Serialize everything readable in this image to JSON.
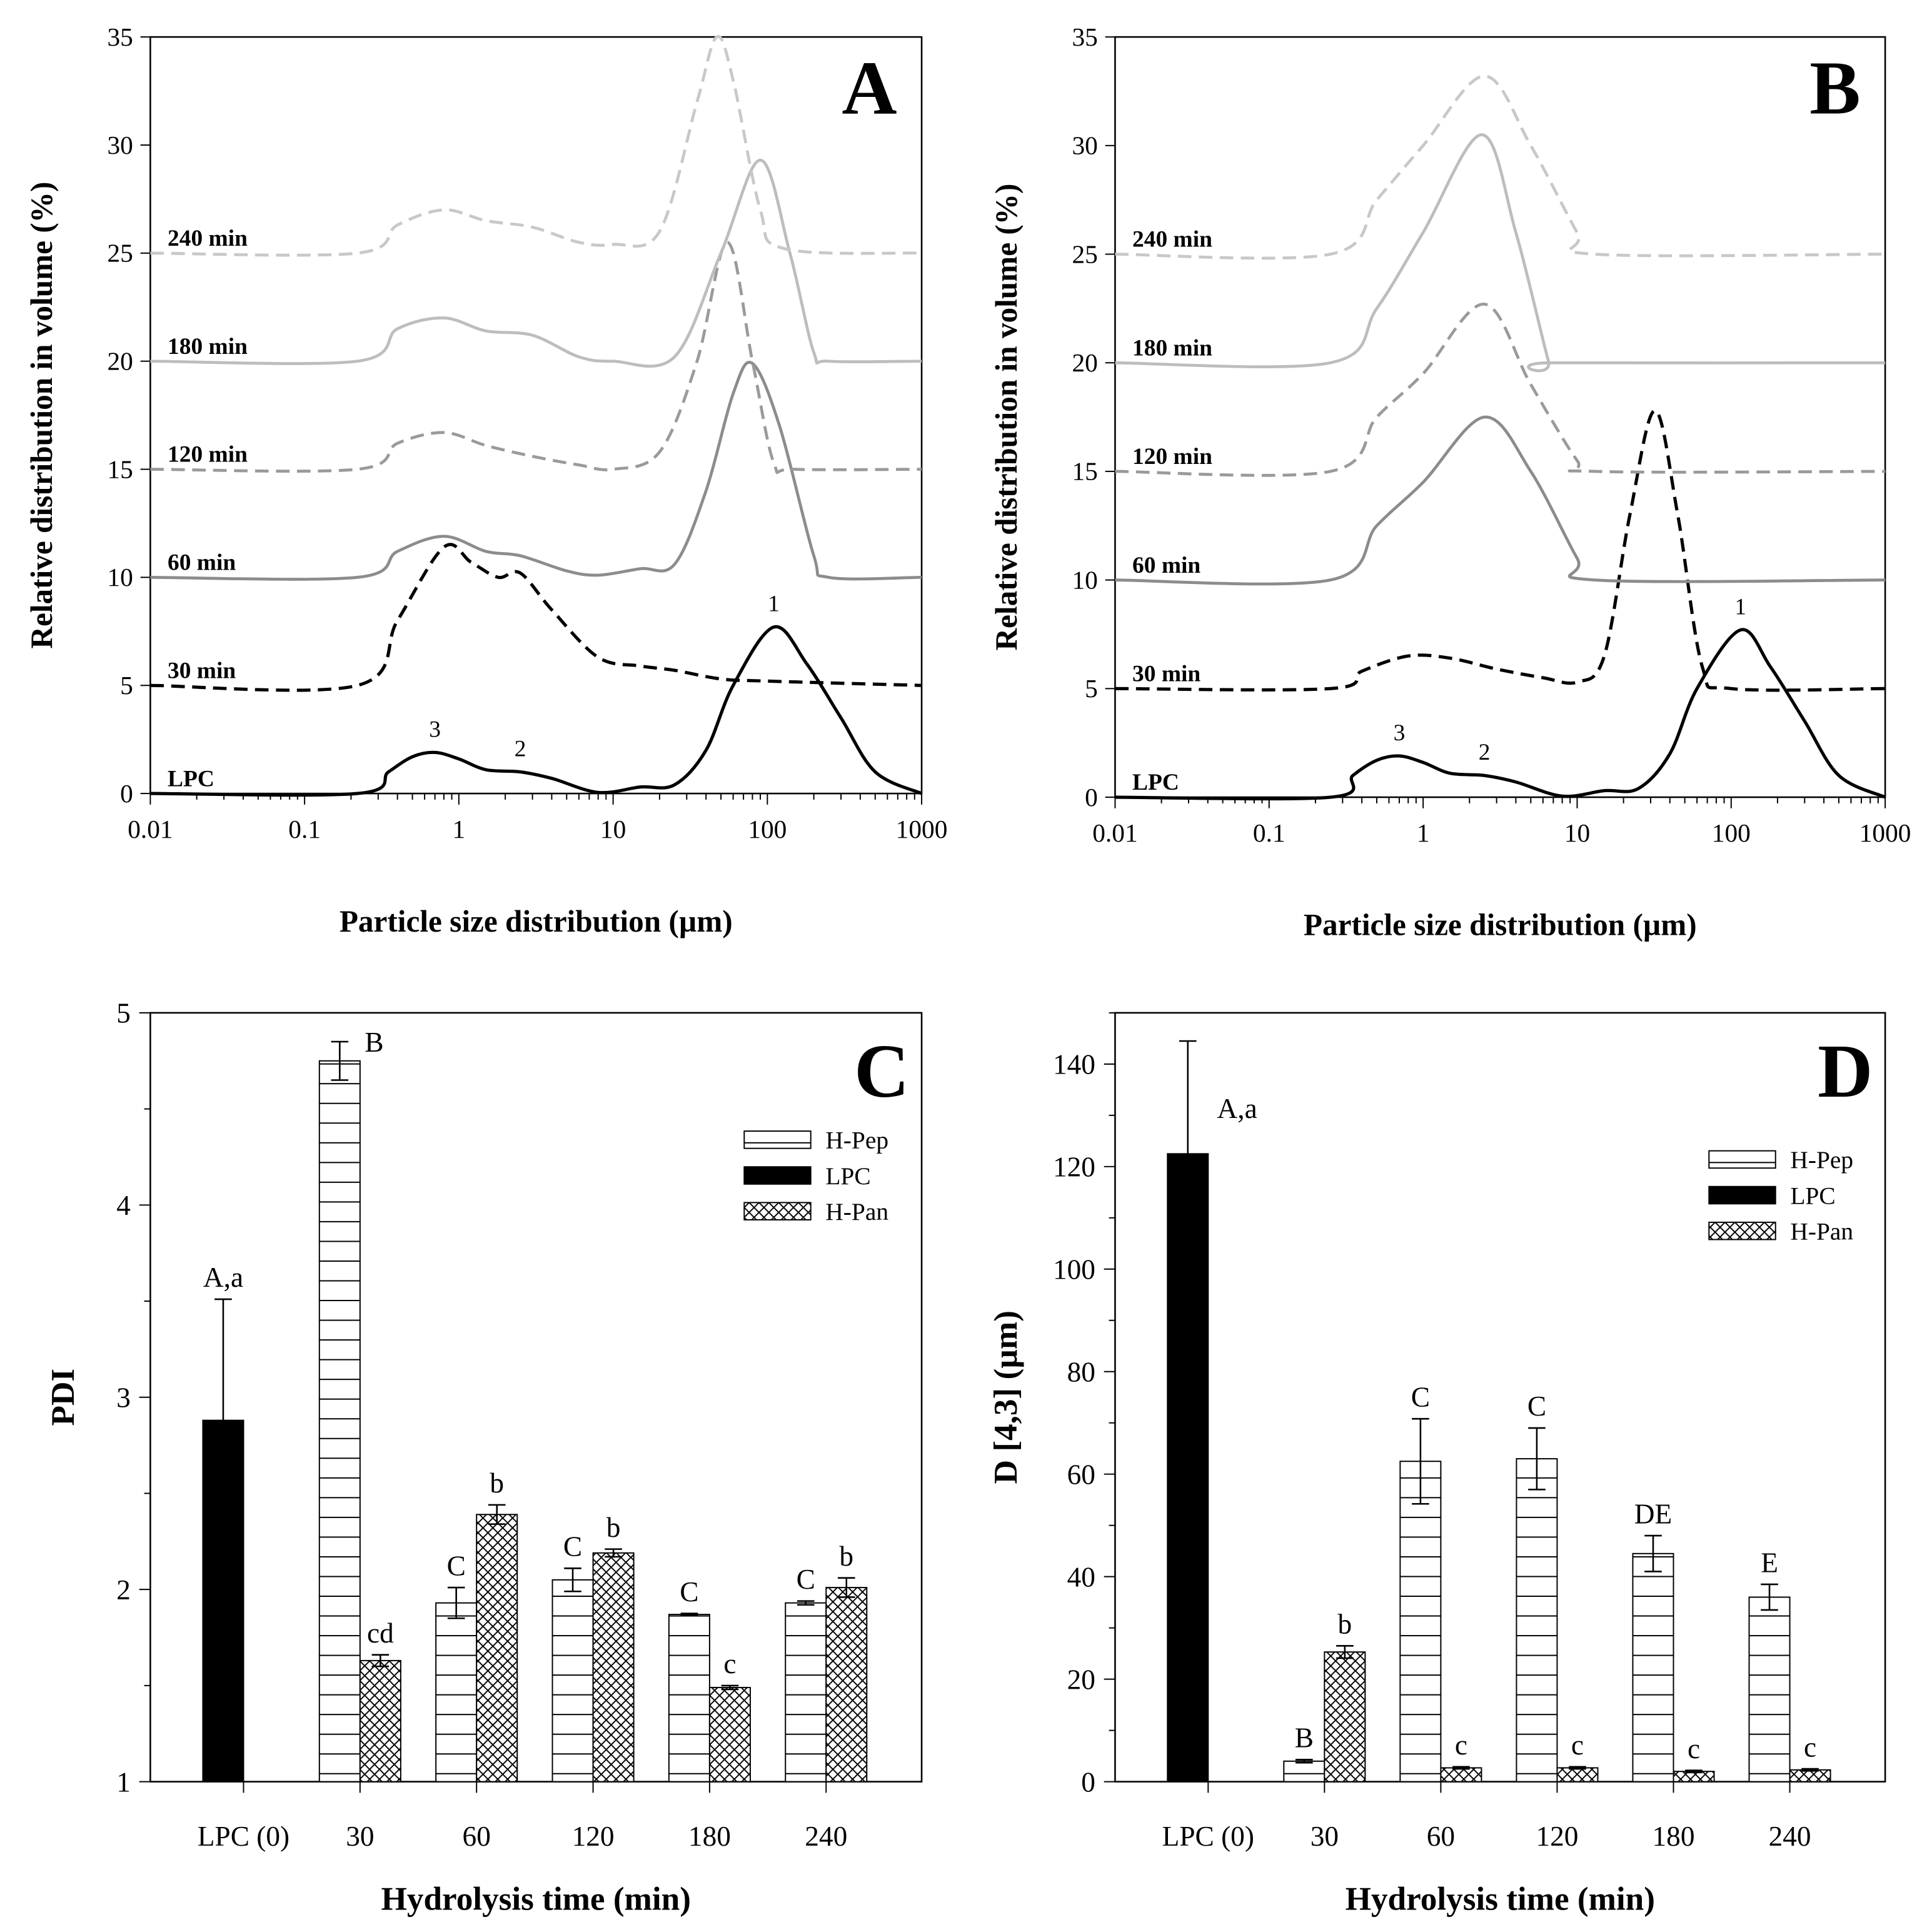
{
  "chart_data": [
    {
      "panel": "A",
      "type": "line",
      "xlabel": "Particle size distribution (µm)",
      "ylabel": "Relative distribution in volume (%)",
      "xscale": "log",
      "xlim": [
        0.01,
        1000
      ],
      "ylim": [
        0,
        35
      ],
      "xtick_labels": [
        "0.01",
        "0.1",
        "1",
        "10",
        "100",
        "1000"
      ],
      "ytick_labels": [
        "0",
        "5",
        "10",
        "15",
        "20",
        "25",
        "30",
        "35"
      ],
      "series": [
        {
          "name": "LPC",
          "label": "LPC",
          "style": "solid",
          "color": "#000000",
          "points": [
            [
              0.01,
              0
            ],
            [
              0.22,
              0
            ],
            [
              0.35,
              1
            ],
            [
              0.5,
              1.7
            ],
            [
              0.7,
              1.9
            ],
            [
              1,
              1.6
            ],
            [
              1.5,
              1.1
            ],
            [
              2.5,
              1.0
            ],
            [
              4,
              0.7
            ],
            [
              8,
              0.05
            ],
            [
              15,
              0.3
            ],
            [
              25,
              0.4
            ],
            [
              40,
              2
            ],
            [
              60,
              5
            ],
            [
              110,
              7.7
            ],
            [
              180,
              6
            ],
            [
              300,
              3.5
            ],
            [
              500,
              1
            ],
            [
              1000,
              0
            ]
          ]
        },
        {
          "name": "30 min",
          "label": "30 min",
          "style": "dashed",
          "color": "#000000",
          "points": [
            [
              0.01,
              5
            ],
            [
              0.22,
              5
            ],
            [
              0.4,
              8
            ],
            [
              0.8,
              11.4
            ],
            [
              1.2,
              10.7
            ],
            [
              1.8,
              10
            ],
            [
              2.5,
              10.2
            ],
            [
              4,
              8.5
            ],
            [
              8,
              6.3
            ],
            [
              15,
              5.9
            ],
            [
              25,
              5.7
            ],
            [
              50,
              5.3
            ],
            [
              100,
              5.2
            ],
            [
              1000,
              5
            ]
          ]
        },
        {
          "name": "60 min",
          "label": "60  min",
          "style": "solid",
          "color": "#8c8c8c",
          "points": [
            [
              0.01,
              10
            ],
            [
              0.22,
              10
            ],
            [
              0.4,
              11.2
            ],
            [
              0.8,
              11.9
            ],
            [
              1.5,
              11.2
            ],
            [
              2.5,
              11
            ],
            [
              5,
              10.3
            ],
            [
              8,
              10.1
            ],
            [
              15,
              10.4
            ],
            [
              25,
              10.6
            ],
            [
              40,
              14
            ],
            [
              60,
              18.5
            ],
            [
              80,
              19.9
            ],
            [
              120,
              17
            ],
            [
              200,
              11
            ],
            [
              250,
              10
            ],
            [
              1000,
              10
            ]
          ]
        },
        {
          "name": "120 min",
          "label": "120 min",
          "style": "dashed",
          "color": "#9a9a9a",
          "points": [
            [
              0.01,
              15
            ],
            [
              0.22,
              15
            ],
            [
              0.4,
              16.2
            ],
            [
              0.8,
              16.7
            ],
            [
              1.5,
              16.1
            ],
            [
              3,
              15.6
            ],
            [
              6,
              15.2
            ],
            [
              10,
              15
            ],
            [
              20,
              15.8
            ],
            [
              35,
              20
            ],
            [
              55,
              25.5
            ],
            [
              80,
              20
            ],
            [
              110,
              15.3
            ],
            [
              150,
              15
            ],
            [
              1000,
              15
            ]
          ]
        },
        {
          "name": "180 min",
          "label": "180 min",
          "style": "solid",
          "color": "#bdbdbd",
          "points": [
            [
              0.01,
              20
            ],
            [
              0.22,
              20
            ],
            [
              0.4,
              21.5
            ],
            [
              0.8,
              22
            ],
            [
              1.5,
              21.4
            ],
            [
              3,
              21.2
            ],
            [
              6,
              20.2
            ],
            [
              10,
              20
            ],
            [
              25,
              20.2
            ],
            [
              50,
              25
            ],
            [
              90,
              29.3
            ],
            [
              140,
              25
            ],
            [
              200,
              20.4
            ],
            [
              250,
              20
            ],
            [
              1000,
              20
            ]
          ]
        },
        {
          "name": "240 min",
          "label": "240 min",
          "style": "dashed",
          "color": "#c8c8c8",
          "points": [
            [
              0.01,
              25
            ],
            [
              0.22,
              25
            ],
            [
              0.4,
              26.3
            ],
            [
              0.8,
              27
            ],
            [
              1.5,
              26.5
            ],
            [
              3,
              26.2
            ],
            [
              6,
              25.5
            ],
            [
              10,
              25.4
            ],
            [
              20,
              26
            ],
            [
              35,
              32
            ],
            [
              47,
              35
            ],
            [
              60,
              33
            ],
            [
              90,
              27
            ],
            [
              130,
              25.2
            ],
            [
              1000,
              25
            ]
          ]
        }
      ],
      "peak_labels": [
        {
          "text": "1",
          "x": 110,
          "y": 8.2
        },
        {
          "text": "2",
          "x": 2.5,
          "y": 1.5
        },
        {
          "text": "3",
          "x": 0.7,
          "y": 2.4
        }
      ]
    },
    {
      "panel": "B",
      "type": "line",
      "xlabel": "Particle size distribution (µm)",
      "ylabel": "Relative distribution in volume (%)",
      "xscale": "log",
      "xlim": [
        0.01,
        1000
      ],
      "ylim": [
        0,
        35
      ],
      "xtick_labels": [
        "0.01",
        "0.1",
        "1",
        "10",
        "100",
        "1000"
      ],
      "ytick_labels": [
        "0",
        "5",
        "10",
        "15",
        "20",
        "25",
        "30",
        "35"
      ],
      "series": [
        {
          "name": "LPC",
          "label": "LPC",
          "style": "solid",
          "color": "#000000",
          "points": [
            [
              0.01,
              0
            ],
            [
              0.25,
              0
            ],
            [
              0.35,
              1
            ],
            [
              0.5,
              1.7
            ],
            [
              0.7,
              1.9
            ],
            [
              1,
              1.6
            ],
            [
              1.5,
              1.1
            ],
            [
              2.5,
              1.0
            ],
            [
              4,
              0.7
            ],
            [
              8,
              0.05
            ],
            [
              15,
              0.3
            ],
            [
              25,
              0.4
            ],
            [
              40,
              2
            ],
            [
              60,
              5
            ],
            [
              115,
              7.7
            ],
            [
              180,
              6
            ],
            [
              300,
              3.5
            ],
            [
              500,
              1
            ],
            [
              1000,
              0
            ]
          ]
        },
        {
          "name": "30 min",
          "label": "30 min",
          "style": "dashed",
          "color": "#000000",
          "points": [
            [
              0.01,
              5
            ],
            [
              0.25,
              5
            ],
            [
              0.4,
              5.8
            ],
            [
              0.8,
              6.5
            ],
            [
              1.5,
              6.4
            ],
            [
              3,
              5.9
            ],
            [
              6,
              5.5
            ],
            [
              10,
              5.3
            ],
            [
              15,
              6.5
            ],
            [
              22,
              13
            ],
            [
              32,
              17.8
            ],
            [
              45,
              13
            ],
            [
              65,
              6
            ],
            [
              100,
              5
            ],
            [
              1000,
              5
            ]
          ]
        },
        {
          "name": "60 min",
          "label": "60  min",
          "style": "solid",
          "color": "#8c8c8c",
          "points": [
            [
              0.01,
              10
            ],
            [
              0.25,
              10
            ],
            [
              0.5,
              12.5
            ],
            [
              1,
              14.5
            ],
            [
              2.5,
              17.5
            ],
            [
              5,
              15
            ],
            [
              10,
              11
            ],
            [
              13,
              10
            ],
            [
              1000,
              10
            ]
          ]
        },
        {
          "name": "120 min",
          "label": "120 min",
          "style": "dashed",
          "color": "#9a9a9a",
          "points": [
            [
              0.01,
              15
            ],
            [
              0.25,
              15
            ],
            [
              0.5,
              17.5
            ],
            [
              1,
              19.5
            ],
            [
              2.5,
              22.7
            ],
            [
              5,
              19
            ],
            [
              10,
              15.5
            ],
            [
              13,
              15
            ],
            [
              1000,
              15
            ]
          ]
        },
        {
          "name": "180 min",
          "label": "180 min",
          "style": "solid",
          "color": "#bdbdbd",
          "points": [
            [
              0.01,
              20
            ],
            [
              0.25,
              20
            ],
            [
              0.5,
              22.5
            ],
            [
              1,
              26
            ],
            [
              2.4,
              30.5
            ],
            [
              4,
              26
            ],
            [
              6.5,
              20.1
            ],
            [
              7,
              20
            ],
            [
              1000,
              20
            ]
          ]
        },
        {
          "name": "240 min",
          "label": "240 min",
          "style": "dashed",
          "color": "#c8c8c8",
          "points": [
            [
              0.01,
              25
            ],
            [
              0.25,
              25
            ],
            [
              0.5,
              27.5
            ],
            [
              1,
              30
            ],
            [
              2.5,
              33.2
            ],
            [
              5,
              30
            ],
            [
              10,
              26
            ],
            [
              13,
              25
            ],
            [
              1000,
              25
            ]
          ]
        }
      ],
      "peak_labels": [
        {
          "text": "1",
          "x": 115,
          "y": 8.2
        },
        {
          "text": "2",
          "x": 2.5,
          "y": 1.5
        },
        {
          "text": "3",
          "x": 0.7,
          "y": 2.4
        }
      ]
    },
    {
      "panel": "C",
      "type": "bar",
      "xlabel": "Hydrolysis time (min)",
      "ylabel": "PDI",
      "ylim": [
        1,
        5
      ],
      "ytick_labels": [
        "1",
        "2",
        "3",
        "4",
        "5"
      ],
      "categories": [
        "LPC (0)",
        "30",
        "60",
        "120",
        "180",
        "240"
      ],
      "legend": [
        "H-Pep",
        "LPC",
        "H-Pan"
      ],
      "legend_position": "top-right",
      "series": [
        {
          "name": "LPC",
          "values": [
            2.88,
            null,
            null,
            null,
            null,
            null
          ],
          "errors": [
            0.63,
            null,
            null,
            null,
            null,
            null
          ],
          "letters": [
            "A,a",
            "",
            "",
            "",
            "",
            ""
          ]
        },
        {
          "name": "H-Pep",
          "values": [
            null,
            4.75,
            1.93,
            2.05,
            1.87,
            1.93
          ],
          "errors": [
            null,
            0.1,
            0.08,
            0.06,
            0.005,
            0.01
          ],
          "letters": [
            "",
            "B",
            "C",
            "C",
            "C",
            "C"
          ]
        },
        {
          "name": "H-Pan",
          "values": [
            null,
            1.63,
            2.39,
            2.19,
            1.49,
            2.01
          ],
          "errors": [
            null,
            0.03,
            0.05,
            0.02,
            0.01,
            0.05
          ],
          "letters": [
            "",
            "cd",
            "b",
            "b",
            "c",
            "b"
          ]
        }
      ]
    },
    {
      "panel": "D",
      "type": "bar",
      "xlabel": "Hydrolysis time (min)",
      "ylabel": "D [4,3] (µm)",
      "ylim": [
        0,
        150
      ],
      "ytick_labels": [
        "0",
        "20",
        "40",
        "60",
        "80",
        "100",
        "120",
        "140"
      ],
      "categories": [
        "LPC (0)",
        "30",
        "60",
        "120",
        "180",
        "240"
      ],
      "legend": [
        "H-Pep",
        "LPC",
        "H-Pan"
      ],
      "legend_position": "top-right",
      "series": [
        {
          "name": "LPC",
          "values": [
            122.5,
            null,
            null,
            null,
            null,
            null
          ],
          "errors": [
            22,
            null,
            null,
            null,
            null,
            null
          ],
          "letters": [
            "A,a",
            "",
            "",
            "",
            "",
            ""
          ]
        },
        {
          "name": "H-Pep",
          "values": [
            null,
            4,
            62.5,
            63,
            44.5,
            36
          ],
          "errors": [
            null,
            0.3,
            8.3,
            6,
            3.5,
            2.5
          ],
          "letters": [
            "",
            "B",
            "C",
            "C",
            "DE",
            "E"
          ]
        },
        {
          "name": "H-Pan",
          "values": [
            null,
            25.3,
            2.7,
            2.7,
            2,
            2.3
          ],
          "errors": [
            null,
            1.2,
            0.2,
            0.2,
            0.2,
            0.2
          ],
          "letters": [
            "",
            "b",
            "c",
            "c",
            "c",
            "c"
          ]
        }
      ]
    }
  ]
}
